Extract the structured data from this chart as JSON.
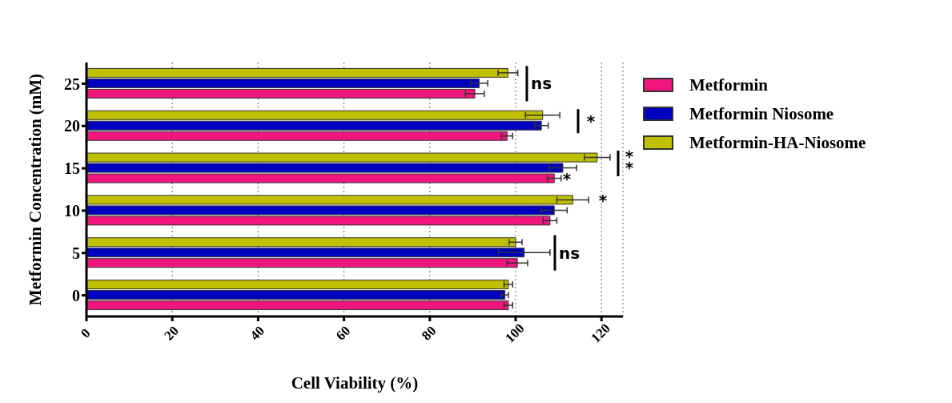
{
  "chart_data": {
    "type": "bar",
    "orientation": "horizontal",
    "xlabel": "Cell Viability (%)",
    "ylabel": "Metformin Concentration (mM)",
    "categories": [
      "25",
      "20",
      "15",
      "10",
      "5",
      "0"
    ],
    "series": [
      {
        "name": "Metformin",
        "color": "#f0167d",
        "values": [
          90.5,
          98,
          109,
          108,
          100.4,
          98.3
        ],
        "errors": [
          2.2,
          1.3,
          1.6,
          1.6,
          2.4,
          1
        ]
      },
      {
        "name": "Metformin Niosome",
        "color": "#0000c0",
        "values": [
          91.5,
          106,
          111,
          109,
          102,
          97.5
        ],
        "errors": [
          2,
          1.6,
          3.2,
          3,
          6,
          0.8
        ]
      },
      {
        "name": "Metformin-HA-Niosome",
        "color": "#c0c000",
        "values": [
          98.2,
          106.3,
          119,
          113.3,
          100,
          98.3
        ],
        "errors": [
          2.3,
          4,
          3,
          3.7,
          1.5,
          1
        ]
      }
    ],
    "xlim": [
      0,
      125
    ],
    "xticks": [
      0,
      20,
      40,
      60,
      80,
      100,
      120
    ],
    "grid": "x",
    "legend": "top right",
    "annotations": [
      "ns",
      "*",
      "**",
      "*",
      "*",
      "ns"
    ]
  }
}
